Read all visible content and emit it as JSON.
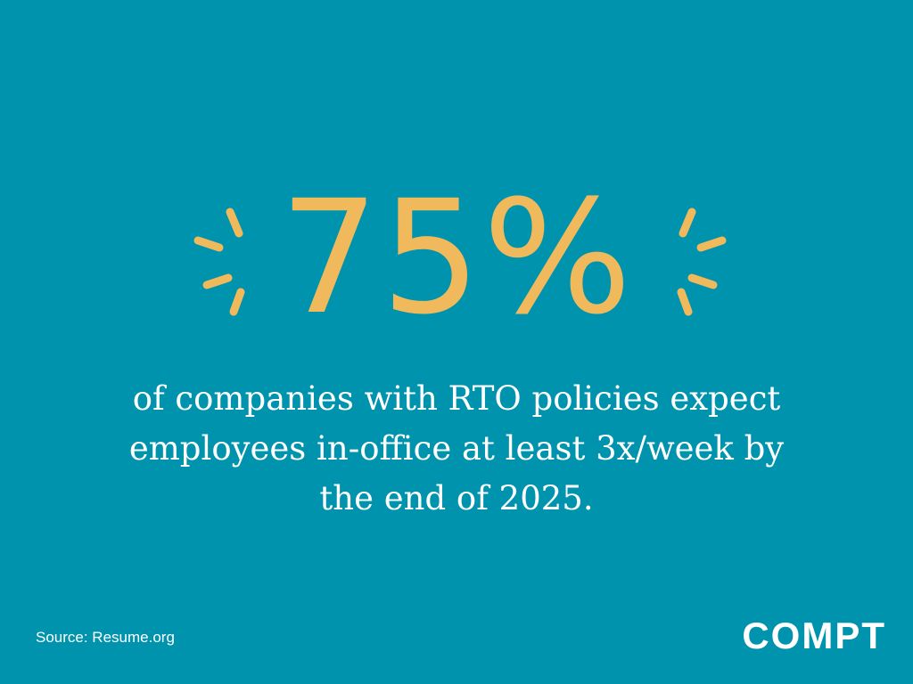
{
  "headline": {
    "value": "75%"
  },
  "body": {
    "lines": [
      "of companies with RTO policies expect",
      "employees in-office at least 3x/week by",
      "the end of 2025."
    ]
  },
  "footer": {
    "source": "Source: Resume.org",
    "logo": "COMPT"
  }
}
